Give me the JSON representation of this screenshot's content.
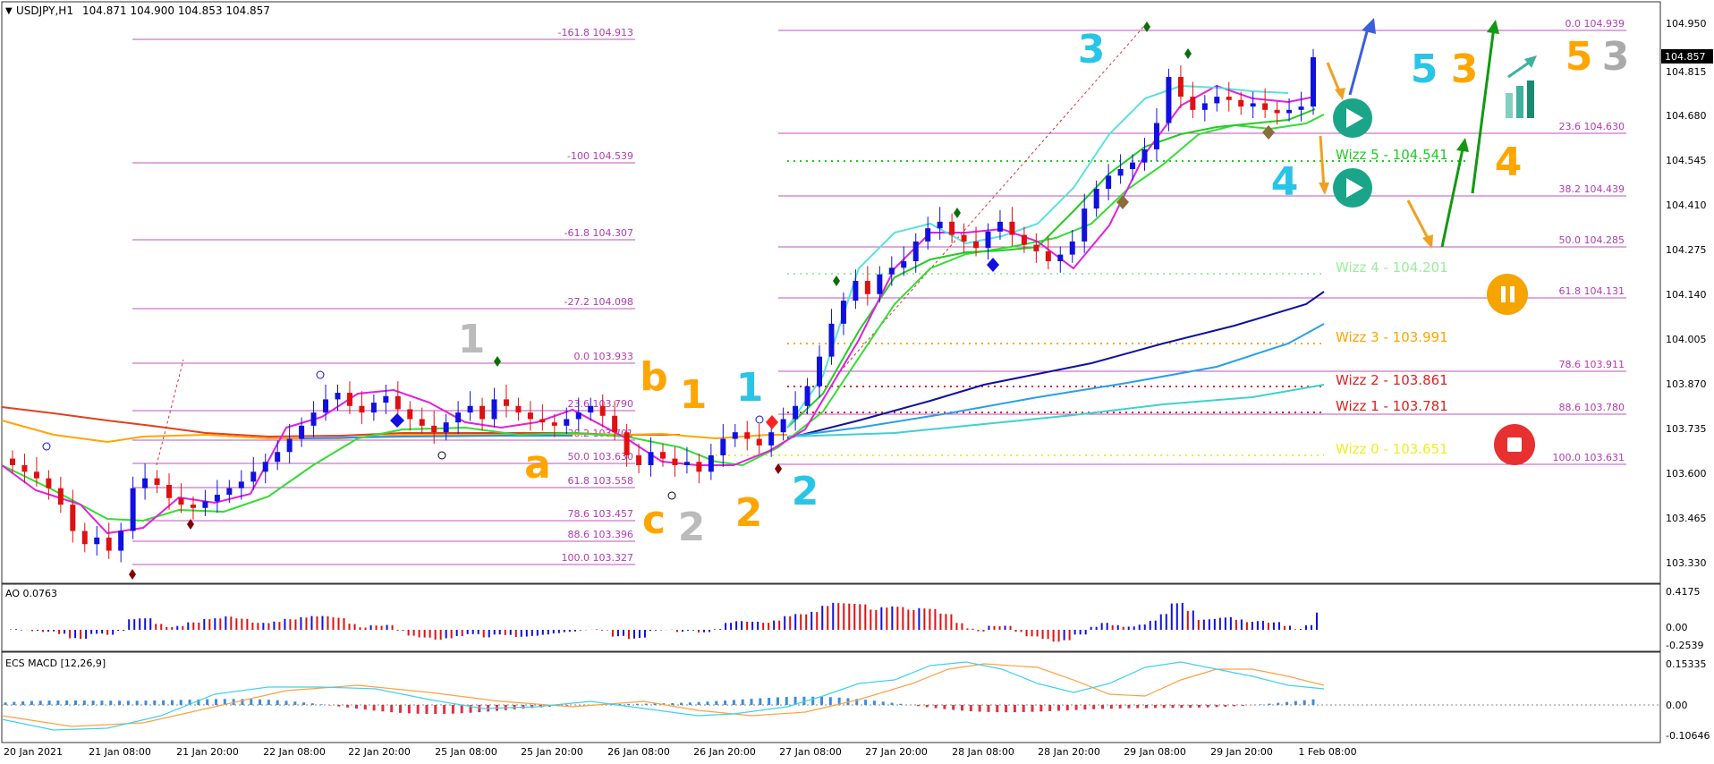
{
  "header": {
    "symbol": "USDJPY,H1",
    "ohlc": "104.871 104.900 104.853 104.857"
  },
  "price_axis": {
    "ticks": [
      "104.950",
      "104.815",
      "104.680",
      "104.545",
      "104.410",
      "104.275",
      "104.140",
      "104.005",
      "103.870",
      "103.735",
      "103.600",
      "103.465",
      "103.330"
    ],
    "current": "104.857"
  },
  "time_axis": {
    "labels": [
      "20 Jan 2021",
      "21 Jan 08:00",
      "21 Jan 20:00",
      "22 Jan 08:00",
      "22 Jan 20:00",
      "25 Jan 08:00",
      "25 Jan 20:00",
      "26 Jan 08:00",
      "26 Jan 20:00",
      "27 Jan 08:00",
      "27 Jan 20:00",
      "28 Jan 08:00",
      "28 Jan 20:00",
      "29 Jan 08:00",
      "29 Jan 20:00",
      "1 Feb 08:00"
    ]
  },
  "fib_left": {
    "labels": [
      "-161.8 104.913",
      "-100  104.539",
      "-61.8 104.307",
      "-27.2 104.098",
      "0.0 103.933",
      "23.6 103.790",
      "38.2 103.701",
      "50.0 103.630",
      "61.8 103.558",
      "78.6 103.457",
      "88.6 103.396",
      "100.0 103.327"
    ]
  },
  "fib_right": {
    "labels": [
      "0.0 104.939",
      "23.6 104.630",
      "38.2 104.439",
      "50.0 104.285",
      "61.8 104.131",
      "78.6 103.911",
      "88.6 103.780",
      "100.0 103.631"
    ]
  },
  "wizz": {
    "labels": [
      "Wizz 5 - 104.541",
      "Wizz 4 - 104.201",
      "Wizz 3 - 103.991",
      "Wizz 2 - 103.861",
      "Wizz 1 - 103.781",
      "Wizz 0 - 103.651"
    ],
    "colors": [
      "#22cc22",
      "#99ee99",
      "#ffa500",
      "#dd2222",
      "#dd2222",
      "#eeee22"
    ]
  },
  "waves": {
    "labels": [
      "1",
      "a",
      "b",
      "c",
      "2",
      "1",
      "2",
      "1",
      "2",
      "3",
      "4",
      "5",
      "3",
      "5",
      "3",
      "4",
      "5",
      "3"
    ],
    "colors": [
      "#aaaaaa",
      "#ffa500",
      "#ffa500",
      "#ffa500",
      "#aaaaaa",
      "#ffa500",
      "#ffa500",
      "#29c5e6",
      "#29c5e6",
      "#29c5e6",
      "#29c5e6",
      "#29c5e6",
      "#ffa500",
      "#ffa500",
      "#aaaaaa",
      "#ffa500",
      "#ffa500",
      "#aaaaaa"
    ]
  },
  "ao": {
    "label": "AO 0.0763",
    "ticks": [
      "0.4175",
      "0.00",
      "-0.2539"
    ]
  },
  "macd": {
    "label": "ECS MACD [12,26,9]",
    "ticks": [
      "0.15335",
      "0.00",
      "-0.10646"
    ]
  },
  "colors": {
    "bull": "#1010e0",
    "bear": "#e01010",
    "neutral": "#999999",
    "fib": "#b03ab0",
    "wizz_play": "#1aa589",
    "pause": "#f5a400",
    "stop": "#e83030"
  },
  "icons": [
    "play-icon",
    "play-icon",
    "pause-icon",
    "stop-icon",
    "bar-chart-icon"
  ],
  "chart_data": {
    "type": "candlestick",
    "symbol": "USDJPY",
    "timeframe": "H1",
    "ohlc_last": {
      "open": 104.871,
      "high": 104.9,
      "low": 104.853,
      "close": 104.857
    },
    "ylim": [
      103.28,
      104.985
    ],
    "x_period": [
      "20 Jan 2021",
      "1 Feb 08:00"
    ],
    "closes": [
      103.62,
      103.6,
      103.58,
      103.55,
      103.5,
      103.42,
      103.38,
      103.4,
      103.36,
      103.42,
      103.55,
      103.58,
      103.56,
      103.52,
      103.5,
      103.49,
      103.51,
      103.53,
      103.55,
      103.57,
      103.6,
      103.63,
      103.66,
      103.7,
      103.74,
      103.78,
      103.82,
      103.84,
      103.8,
      103.78,
      103.81,
      103.83,
      103.79,
      103.76,
      103.74,
      103.72,
      103.75,
      103.78,
      103.8,
      103.76,
      103.82,
      103.8,
      103.78,
      103.76,
      103.75,
      103.74,
      103.76,
      103.78,
      103.8,
      103.77,
      103.72,
      103.65,
      103.62,
      103.66,
      103.64,
      103.62,
      103.63,
      103.6,
      103.65,
      103.7,
      103.72,
      103.7,
      103.68,
      103.72,
      103.76,
      103.8,
      103.86,
      103.95,
      104.05,
      104.12,
      104.18,
      104.14,
      104.2,
      104.22,
      104.24,
      104.3,
      104.34,
      104.36,
      104.32,
      104.3,
      104.28,
      104.33,
      104.36,
      104.32,
      104.29,
      104.27,
      104.24,
      104.26,
      104.3,
      104.4,
      104.46,
      104.5,
      104.52,
      104.54,
      104.58,
      104.66,
      104.8,
      104.74,
      104.7,
      104.72,
      104.74,
      104.73,
      104.71,
      104.72,
      104.7,
      104.69,
      104.7,
      104.71,
      104.86
    ],
    "fib_retracement_left": [
      {
        "level": -161.8,
        "price": 104.913
      },
      {
        "level": -100,
        "price": 104.539
      },
      {
        "level": -61.8,
        "price": 104.307
      },
      {
        "level": -27.2,
        "price": 104.098
      },
      {
        "level": 0.0,
        "price": 103.933
      },
      {
        "level": 23.6,
        "price": 103.79
      },
      {
        "level": 38.2,
        "price": 103.701
      },
      {
        "level": 50.0,
        "price": 103.63
      },
      {
        "level": 61.8,
        "price": 103.558
      },
      {
        "level": 78.6,
        "price": 103.457
      },
      {
        "level": 88.6,
        "price": 103.396
      },
      {
        "level": 100.0,
        "price": 103.327
      }
    ],
    "fib_retracement_right": [
      {
        "level": 0.0,
        "price": 104.939
      },
      {
        "level": 23.6,
        "price": 104.63
      },
      {
        "level": 38.2,
        "price": 104.439
      },
      {
        "level": 50.0,
        "price": 104.285
      },
      {
        "level": 61.8,
        "price": 104.131
      },
      {
        "level": 78.6,
        "price": 103.911
      },
      {
        "level": 88.6,
        "price": 103.78
      },
      {
        "level": 100.0,
        "price": 103.631
      }
    ],
    "wizz_levels": [
      104.541,
      104.201,
      103.991,
      103.861,
      103.781,
      103.651
    ],
    "ao": {
      "last": 0.0763,
      "ylim": [
        -0.2539,
        0.4175
      ]
    },
    "macd": {
      "params": [
        12,
        26,
        9
      ],
      "ylim": [
        -0.10646,
        0.15335
      ]
    }
  }
}
